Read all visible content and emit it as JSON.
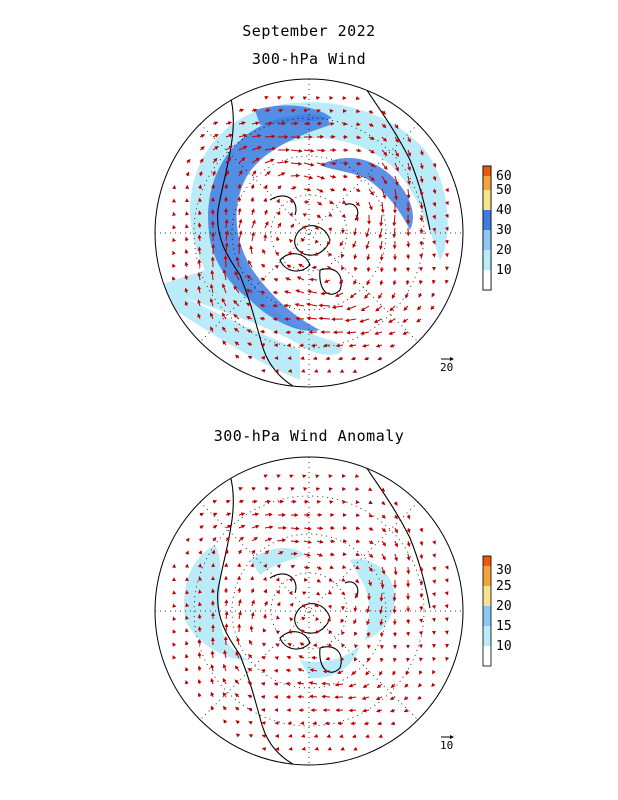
{
  "title": "September 2022",
  "panels": [
    {
      "subtitle": "300-hPa Wind",
      "colorbar": {
        "labels": [
          "10",
          "20",
          "30",
          "40",
          "50",
          "60"
        ],
        "colors": [
          "#ffffff",
          "#b9ecf8",
          "#8dc8f4",
          "#3f7ee0",
          "#f7e38a",
          "#f4a43c",
          "#ea5a0d"
        ]
      },
      "reference_vector": "20"
    },
    {
      "subtitle": "300-hPa Wind Anomaly",
      "colorbar": {
        "labels": [
          "10",
          "15",
          "20",
          "25",
          "30"
        ],
        "colors": [
          "#ffffff",
          "#b9ecf8",
          "#8dc8f4",
          "#f7e38a",
          "#f4a43c",
          "#ea5a0d"
        ]
      },
      "reference_vector": "10"
    }
  ],
  "colors": {
    "vector": "#c00000",
    "coast": "#000000",
    "grid": "#000000"
  }
}
